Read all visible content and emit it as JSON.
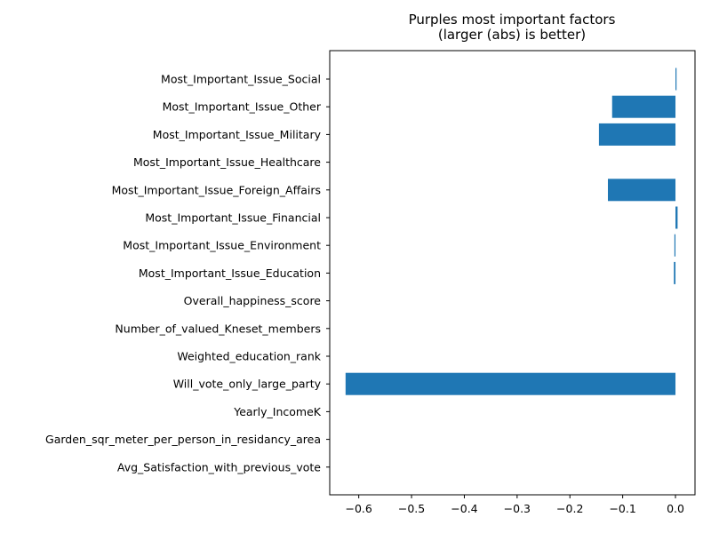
{
  "chart_data": {
    "type": "bar",
    "orientation": "horizontal",
    "title": "Purples most important factors",
    "subtitle": "(larger (abs) is better)",
    "xlabel": "",
    "ylabel": "",
    "xlim": [
      -0.655,
      0.037
    ],
    "xticks": [
      -0.6,
      -0.5,
      -0.4,
      -0.3,
      -0.2,
      -0.1,
      0.0
    ],
    "xtick_labels": [
      "−0.6",
      "−0.5",
      "−0.4",
      "−0.3",
      "−0.2",
      "−0.1",
      "0.0"
    ],
    "grid": false,
    "bar_color": "#1f77b4",
    "categories": [
      "Most_Important_Issue_Social",
      "Most_Important_Issue_Other",
      "Most_Important_Issue_Military",
      "Most_Important_Issue_Healthcare",
      "Most_Important_Issue_Foreign_Affairs",
      "Most_Important_Issue_Financial",
      "Most_Important_Issue_Environment",
      "Most_Important_Issue_Education",
      "Overall_happiness_score",
      "Number_of_valued_Kneset_members",
      "Weighted_education_rank",
      "Will_vote_only_large_party",
      "Yearly_IncomeK",
      "Garden_sqr_meter_per_person_in_residancy_area",
      "Avg_Satisfaction_with_previous_vote"
    ],
    "values": [
      0.002,
      -0.12,
      -0.145,
      0.0,
      -0.128,
      0.004,
      -0.002,
      -0.003,
      0.0,
      0.0,
      0.0,
      -0.625,
      0.0,
      0.0,
      0.0
    ]
  }
}
